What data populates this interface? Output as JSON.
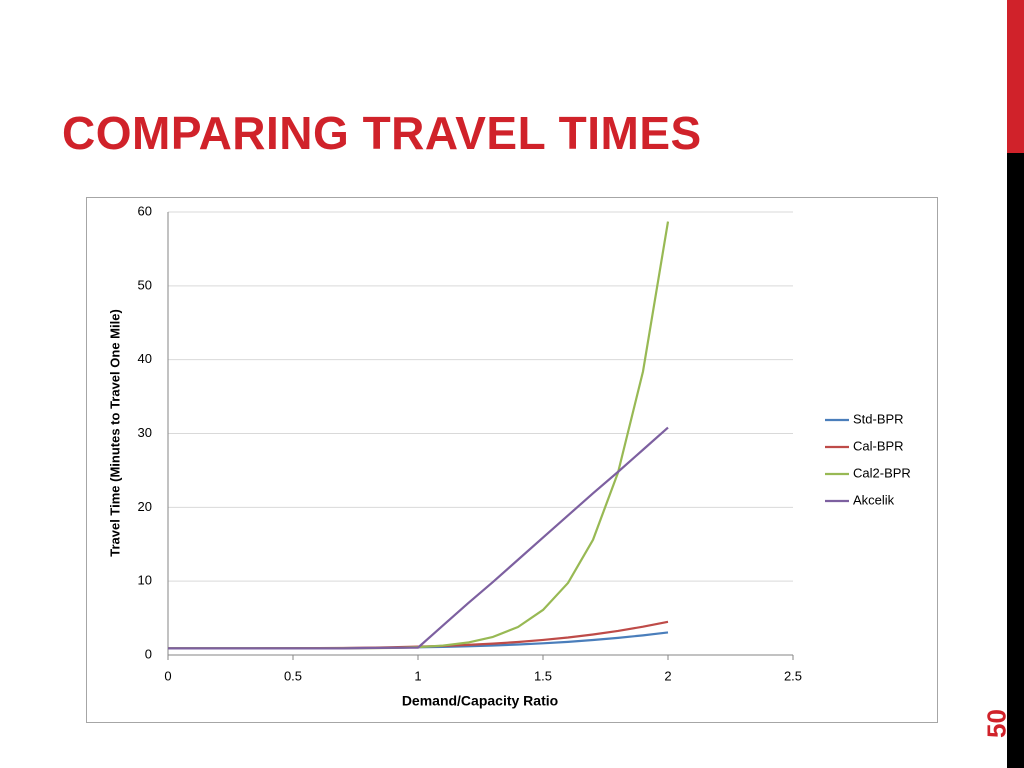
{
  "title": "COMPARING TRAVEL TIMES",
  "page_number": "50",
  "chart_data": {
    "type": "line",
    "x_label": "Demand/Capacity Ratio",
    "y_label": "Travel Time (Minutes to Travel One Mile)",
    "x": [
      0,
      0.1,
      0.2,
      0.3,
      0.4,
      0.5,
      0.6,
      0.7,
      0.8,
      0.9,
      1,
      1.1,
      1.2,
      1.3,
      1.4,
      1.5,
      1.6,
      1.7,
      1.8,
      1.9,
      2
    ],
    "series": [
      {
        "name": "Std-BPR",
        "color": "#4a7ebb",
        "values": [
          0.9,
          0.9,
          0.9,
          0.9,
          0.9,
          0.91,
          0.92,
          0.93,
          0.96,
          0.99,
          1.04,
          1.1,
          1.18,
          1.29,
          1.42,
          1.58,
          1.78,
          2.03,
          2.32,
          2.66,
          3.06
        ]
      },
      {
        "name": "Cal-BPR",
        "color": "#be4b48",
        "values": [
          0.9,
          0.9,
          0.9,
          0.9,
          0.91,
          0.91,
          0.93,
          0.95,
          0.99,
          1.05,
          1.13,
          1.23,
          1.37,
          1.54,
          1.76,
          2.04,
          2.37,
          2.78,
          3.26,
          3.83,
          4.5
        ]
      },
      {
        "name": "Cal2-BPR",
        "color": "#98b954",
        "values": [
          0.9,
          0.9,
          0.9,
          0.9,
          0.9,
          0.9,
          0.9,
          0.91,
          0.93,
          0.97,
          1.07,
          1.28,
          1.69,
          2.45,
          3.79,
          6.1,
          9.76,
          15.6,
          24.7,
          38.4,
          58.7
        ]
      },
      {
        "name": "Akcelik",
        "color": "#7d60a0",
        "values": [
          0.9,
          0.9,
          0.9,
          0.9,
          0.9,
          0.9,
          0.9,
          0.9,
          0.95,
          0.98,
          1.0,
          4.0,
          7.0,
          9.9,
          12.9,
          15.9,
          18.9,
          21.9,
          24.8,
          27.8,
          30.8
        ]
      }
    ],
    "xlim": [
      0,
      2.5
    ],
    "xticks": [
      0,
      0.5,
      1,
      1.5,
      2,
      2.5
    ],
    "ylim": [
      0,
      60
    ],
    "yticks": [
      0,
      10,
      20,
      30,
      40,
      50,
      60
    ],
    "grid": true,
    "legend": "right"
  }
}
